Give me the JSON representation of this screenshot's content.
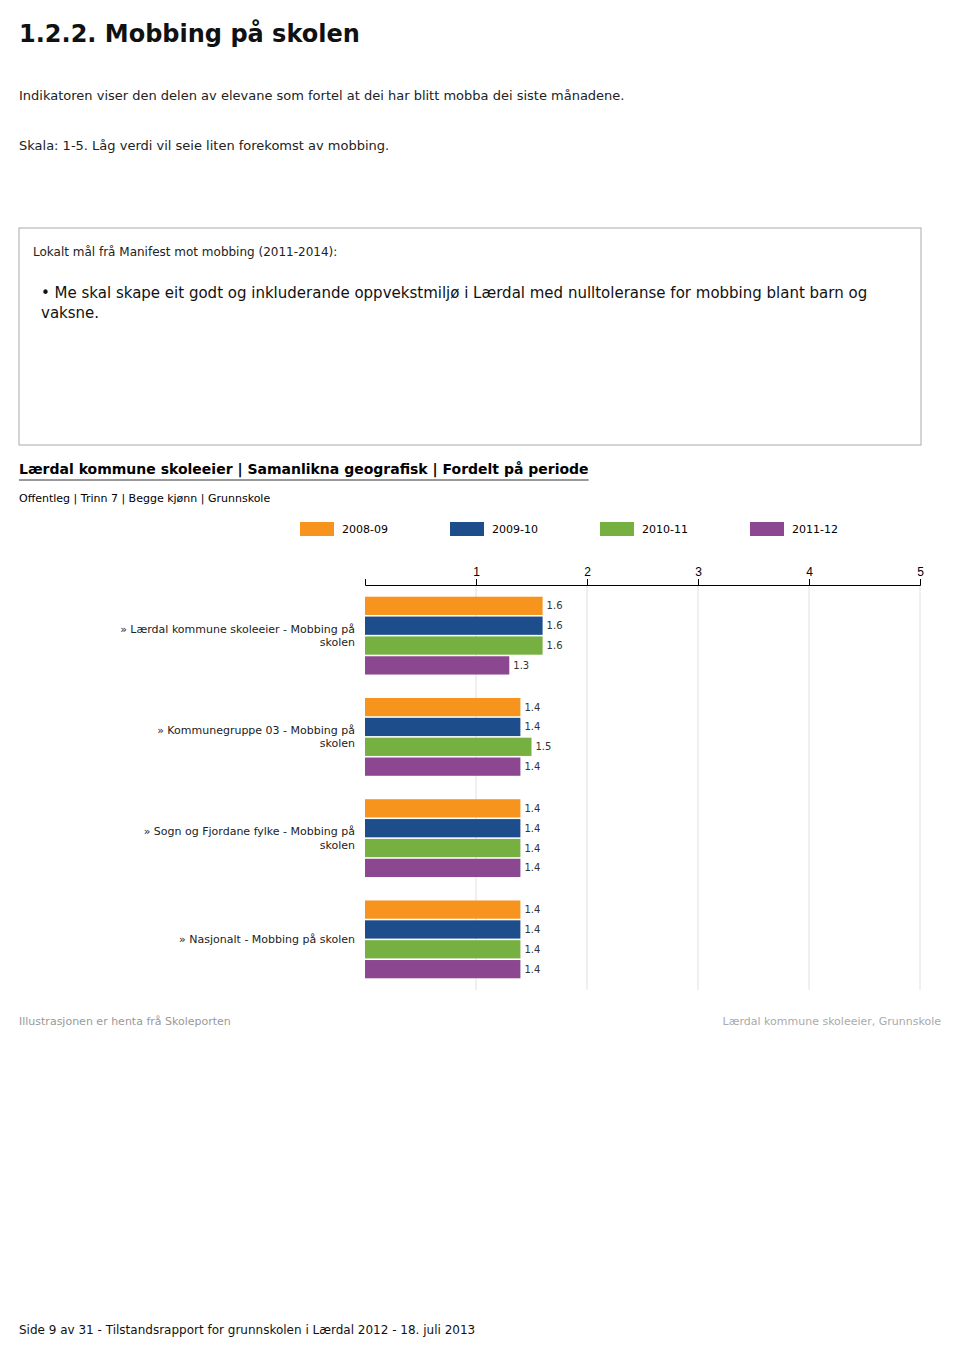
{
  "chart_data": {
    "type": "bar",
    "orientation": "horizontal",
    "title": "1.2.2.  Mobbing på skolen",
    "annotations": [
      "Indikatoren viser den delen av elevane som fortel at dei har blitt mobba dei siste månadene.",
      "Skala: 1-5. Låg verdi vil seie liten forekomst av mobbing.",
      "Lokalt mål frå Manifest mot mobbing (2011-2014):",
      "•  Me skal skape eit godt og inkluderande oppvekstmiljø i Lærdal med nulltoleranse for mobbing blant barn og vaksne.",
      "Lærdal kommune skoleeier | Samanlikna geografisk | Fordelt på periode",
      "Offentleg | Trinn 7 | Begge kjønn | Grunnskole",
      "Illustrasjonen er henta frå Skoleporten",
      "Lærdal kommune skoleeier, Grunnskole",
      "Side 9 av 31 - Tilstandsrapport for grunnskolen i Lærdal 2012 - 18. juli 2013"
    ],
    "categories": [
      "» Lærdal kommune skoleeier - Mobbing på\nskolen",
      "» Kommunegruppe 03 - Mobbing på\nskolen",
      "» Sogn og Fjordane fylke - Mobbing på\nskolen",
      "» Nasjonalt - Mobbing på skolen"
    ],
    "series": [
      {
        "name": "2008-09",
        "color": "#F7941D",
        "values": [
          1.6,
          1.4,
          1.4,
          1.4
        ]
      },
      {
        "name": "2009-10",
        "color": "#1E4D8C",
        "values": [
          1.6,
          1.4,
          1.4,
          1.4
        ]
      },
      {
        "name": "2010-11",
        "color": "#76B041",
        "values": [
          1.6,
          1.5,
          1.4,
          1.4
        ]
      },
      {
        "name": "2011-12",
        "color": "#8B4790",
        "values": [
          1.3,
          1.4,
          1.4,
          1.4
        ]
      }
    ],
    "xlim": [
      0,
      5
    ],
    "xticks": [
      1,
      2,
      3,
      4,
      5
    ],
    "grid": true,
    "data_labels": true
  }
}
